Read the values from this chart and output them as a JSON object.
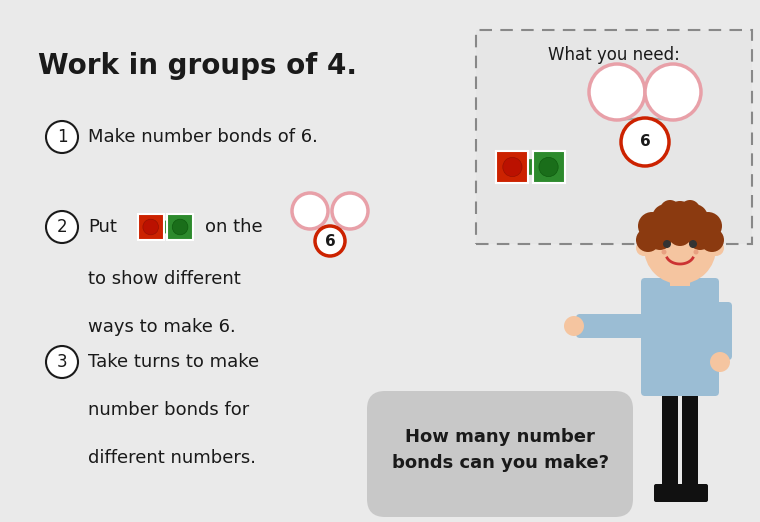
{
  "bg_color": "#eaeaea",
  "title": "Work in groups of 4.",
  "title_fontsize": 20,
  "title_fontweight": "bold",
  "text_color": "#1a1a1a",
  "circle_step_color": "#1a1a1a",
  "cube_red_bg": "#cc2200",
  "cube_green_bg": "#2d8a2d",
  "circle_pink": "#e8a0a8",
  "circle_red_border": "#cc2200",
  "box_bg": "#e6e6e6",
  "box_edge": "#888888",
  "speech_bg": "#c8c8c8",
  "skin_color": "#f5c5a0",
  "hair_color": "#8b3a10",
  "body_color": "#9bbdd4",
  "leg_color": "#111111",
  "step1_text": "Make number bonds of 6.",
  "step2_put": "Put",
  "step2_on": "on the",
  "step2_line2": "to show different",
  "step2_line3": "ways to make 6.",
  "step3_line1": "Take turns to make",
  "step3_line2": "number bonds for",
  "step3_line3": "different numbers.",
  "what_you_need": "What you need:",
  "speech_text": "How many number\nbonds can you make?",
  "num6": "6"
}
